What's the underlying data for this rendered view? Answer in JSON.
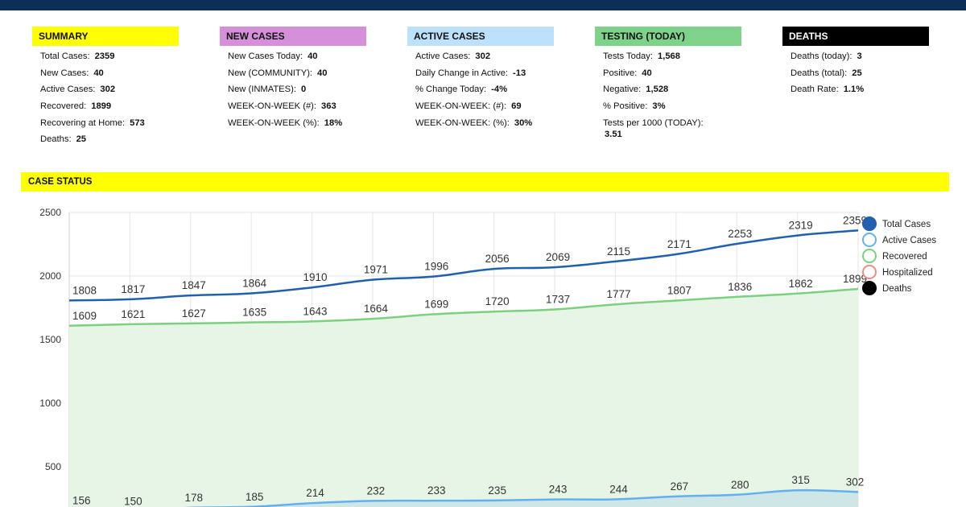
{
  "colors": {
    "topbar": "#0b2f57",
    "summary": "#ffff00",
    "new_cases": "#d590d9",
    "active_cases": "#bde0fb",
    "testing": "#7ed28a",
    "deaths": "#000000",
    "total_line": "#2160ad",
    "active_line": "#62b0ee",
    "recovered_line": "#7dd07f",
    "recovered_fill": "#e6f5e6",
    "active_fill": "#cfe6e7"
  },
  "panels": [
    {
      "title": "SUMMARY",
      "rows": [
        {
          "label": "Total Cases:",
          "value": "2359"
        },
        {
          "label": "New Cases:",
          "value": "40"
        },
        {
          "label": "Active Cases:",
          "value": "302"
        },
        {
          "label": "Recovered:",
          "value": "1899"
        },
        {
          "label": "Recovering at Home:",
          "value": "573"
        },
        {
          "label": "Deaths:",
          "value": "25"
        }
      ]
    },
    {
      "title": "NEW CASES",
      "rows": [
        {
          "label": "New Cases Today:",
          "value": "40"
        },
        {
          "label": "New (COMMUNITY):",
          "value": "40"
        },
        {
          "label": "New (INMATES):",
          "value": "0"
        },
        {
          "label": "WEEK-ON-WEEK (#):",
          "value": "363"
        },
        {
          "label": "WEEK-ON-WEEK (%):",
          "value": "18%"
        }
      ]
    },
    {
      "title": "ACTIVE CASES",
      "rows": [
        {
          "label": "Active Cases:",
          "value": "302"
        },
        {
          "label": "Daily Change in Active:",
          "value": "-13"
        },
        {
          "label": "% Change Today:",
          "value": "-4%"
        },
        {
          "label": "WEEK-ON-WEEK: (#):",
          "value": "69"
        },
        {
          "label": "WEEK-ON-WEEK: (%):",
          "value": "30%"
        }
      ]
    },
    {
      "title": "TESTING (TODAY)",
      "rows": [
        {
          "label": "Tests Today:",
          "value": "1,568"
        },
        {
          "label": "Positive:",
          "value": "40"
        },
        {
          "label": "Negative:",
          "value": "1,528"
        },
        {
          "label": "% Positive:",
          "value": "3%"
        },
        {
          "label": "Tests per 1000 (TODAY):",
          "value": "3.51"
        }
      ]
    },
    {
      "title": "DEATHS",
      "rows": [
        {
          "label": "Deaths (today):",
          "value": "3"
        },
        {
          "label": "Deaths (total):",
          "value": "25"
        },
        {
          "label": "Death Rate:",
          "value": "1.1%"
        }
      ]
    }
  ],
  "case_status": {
    "title": "CASE STATUS"
  },
  "chart_data": {
    "type": "line",
    "title": "CASE STATUS",
    "ylim": [
      0,
      2500
    ],
    "yticks": [
      500,
      1000,
      1500,
      2000,
      2500
    ],
    "grid": true,
    "legend_position": "right",
    "series": [
      {
        "name": "Total Cases",
        "color": "#2160ad",
        "values": [
          1808,
          1817,
          1847,
          1864,
          1910,
          1971,
          1996,
          2056,
          2069,
          2115,
          2171,
          2253,
          2319,
          2359
        ]
      },
      {
        "name": "Active Cases",
        "color": "#62b0ee",
        "values": [
          156,
          150,
          178,
          185,
          214,
          232,
          233,
          235,
          243,
          244,
          267,
          280,
          315,
          302
        ]
      },
      {
        "name": "Recovered",
        "color": "#7dd07f",
        "values": [
          1609,
          1621,
          1627,
          1635,
          1643,
          1664,
          1699,
          1720,
          1737,
          1777,
          1807,
          1836,
          1862,
          1899
        ]
      },
      {
        "name": "Hospitalized",
        "color": "#f08a86",
        "values": []
      },
      {
        "name": "Deaths",
        "color": "#000000",
        "values": []
      }
    ]
  }
}
